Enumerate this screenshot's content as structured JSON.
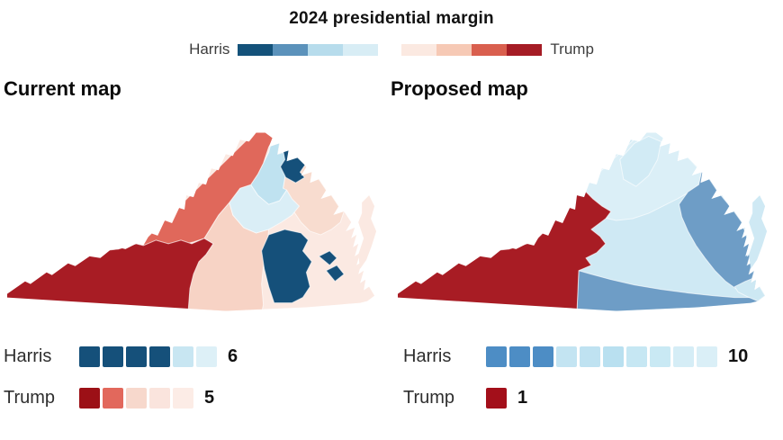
{
  "legend": {
    "title": "2024 presidential margin",
    "harris_label": "Harris",
    "trump_label": "Trump",
    "scale_harris": [
      "#14527a",
      "#5b92bb",
      "#b7dcec",
      "#d8edf5"
    ],
    "scale_trump": [
      "#fbe9e1",
      "#f6c9b5",
      "#d95f4e",
      "#a51c25"
    ]
  },
  "current": {
    "title": "Current map",
    "stats": {
      "harris": {
        "label": "Harris",
        "count": "6",
        "swatches": [
          "#15507a",
          "#15507a",
          "#15507a",
          "#15507a",
          "#c8e6f2",
          "#ddf0f7"
        ]
      },
      "trump": {
        "label": "Trump",
        "count": "5",
        "swatches": [
          "#9c1016",
          "#e2685c",
          "#f7d8cc",
          "#fae4dd",
          "#fcece6"
        ]
      }
    }
  },
  "proposed": {
    "title": "Proposed map",
    "stats": {
      "harris": {
        "label": "Harris",
        "count": "10",
        "swatches": [
          "#4d8dc5",
          "#4d8dc5",
          "#4d8dc5",
          "#c3e4f2",
          "#bfe2f1",
          "#b9e0f0",
          "#c6e7f3",
          "#c9e9f4",
          "#d5edf6",
          "#daeff7"
        ]
      },
      "trump": {
        "label": "Trump",
        "count": "1",
        "swatches": [
          "#a30f1a"
        ]
      }
    }
  },
  "map_colors": {
    "dark_red": "#a81c24",
    "salmon": "#e0685b",
    "center_pink": "#f7d3c5",
    "pale_pink": "#fbe9e2",
    "ne_pink": "#f8dccf",
    "navy": "#15507a",
    "nova_blue": "#bfe2f0",
    "very_light_blue": "#daeef6",
    "p_base_blue": "#cfe9f4",
    "p_north_blue": "#dbeff7",
    "p_north_blue2": "#d2ebf5",
    "p_medium_blue": "#6e9dc6",
    "p_tip_blue": "#cde8f3"
  }
}
